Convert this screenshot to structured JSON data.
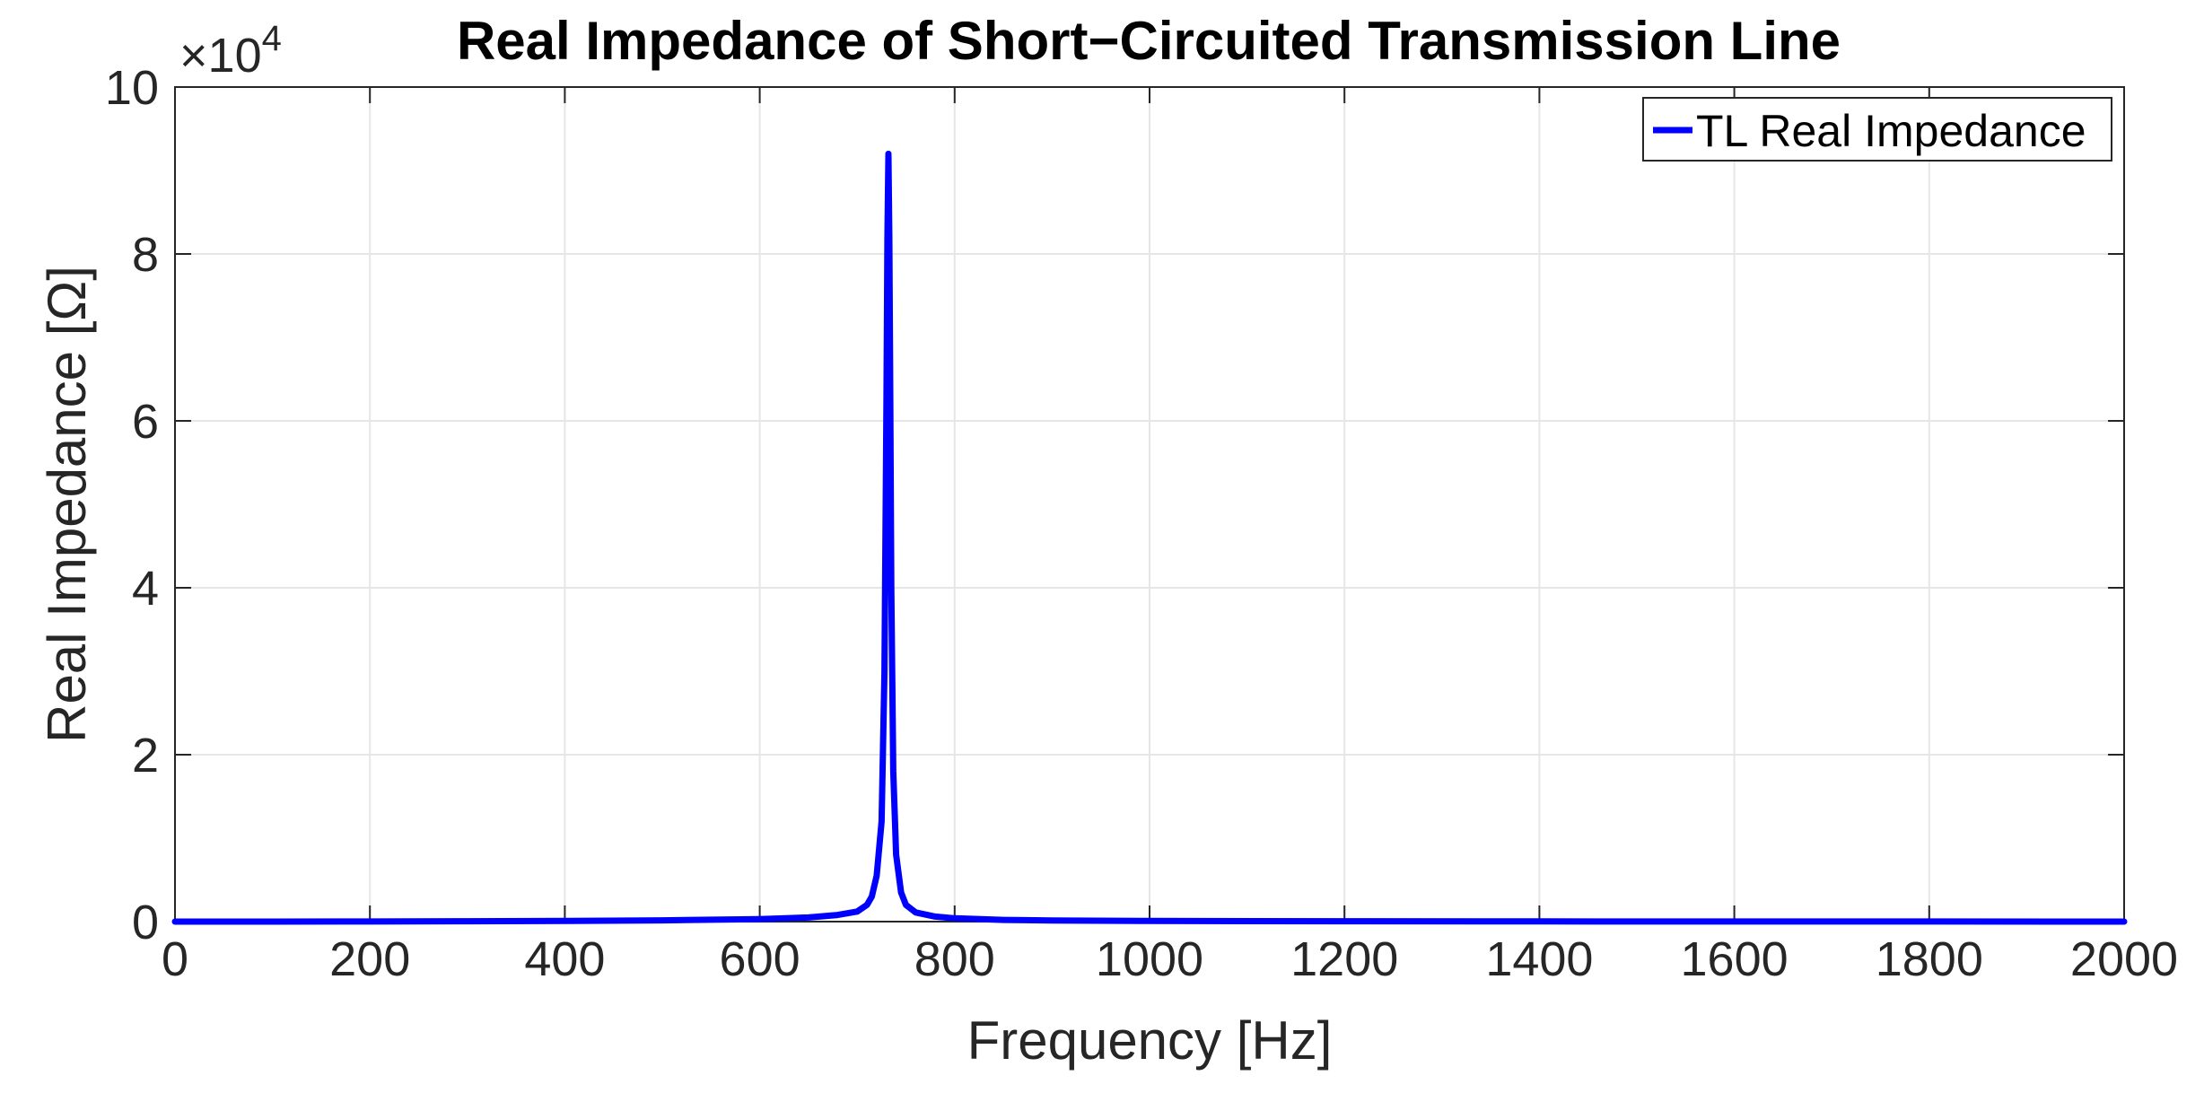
{
  "chart_data": {
    "type": "line",
    "title": "Real Impedance of Short−Circuited Transmission Line",
    "xlabel": "Frequency [Hz]",
    "ylabel": "Real Impedance [Ω]",
    "y_exponent_label": "×10",
    "y_exponent": "4",
    "xlim": [
      0,
      2000
    ],
    "ylim": [
      0,
      100000
    ],
    "x_ticks": [
      "0",
      "200",
      "400",
      "600",
      "800",
      "1000",
      "1200",
      "1400",
      "1600",
      "1800",
      "2000"
    ],
    "y_ticks": [
      "0",
      "2",
      "4",
      "6",
      "8",
      "10"
    ],
    "grid": true,
    "legend_position": "top-right",
    "series": [
      {
        "name": "TL Real Impedance",
        "color": "#0000ff",
        "x": [
          0,
          100,
          200,
          300,
          400,
          500,
          600,
          650,
          680,
          700,
          710,
          715,
          720,
          725,
          728,
          730,
          731,
          732,
          733,
          734,
          735,
          737,
          740,
          745,
          750,
          760,
          780,
          800,
          850,
          900,
          1000,
          1200,
          1400,
          1600,
          1800,
          2000
        ],
        "y": [
          0,
          5,
          15,
          40,
          80,
          150,
          300,
          500,
          800,
          1200,
          2000,
          3000,
          5500,
          12000,
          30000,
          62000,
          82000,
          92000,
          82000,
          62000,
          40000,
          18000,
          8000,
          3500,
          2000,
          1100,
          600,
          400,
          200,
          130,
          80,
          40,
          25,
          15,
          10,
          5
        ]
      }
    ]
  }
}
